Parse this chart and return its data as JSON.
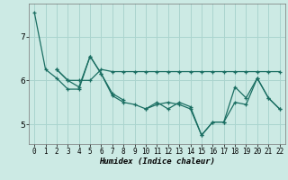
{
  "title": "",
  "xlabel": "Humidex (Indice chaleur)",
  "background_color": "#cceae4",
  "grid_color": "#aad4ce",
  "line_color": "#1a6e62",
  "xlim": [
    -0.5,
    22.5
  ],
  "ylim": [
    4.55,
    7.75
  ],
  "yticks": [
    5,
    6,
    7
  ],
  "xticks": [
    0,
    1,
    2,
    3,
    4,
    5,
    6,
    7,
    8,
    9,
    10,
    11,
    12,
    13,
    14,
    15,
    16,
    17,
    18,
    19,
    20,
    21,
    22
  ],
  "series": [
    [
      7.55,
      6.25,
      6.05,
      5.8,
      5.8,
      6.55,
      6.15,
      5.65,
      5.5,
      5.45,
      5.35,
      5.45,
      5.5,
      5.45,
      5.35,
      4.75,
      5.05,
      5.05,
      5.85,
      5.6,
      6.05,
      5.6,
      5.35
    ],
    [
      null,
      null,
      6.25,
      6.0,
      6.0,
      6.0,
      6.25,
      6.2,
      6.2,
      6.2,
      6.2,
      6.2,
      6.2,
      6.2,
      6.2,
      6.2,
      6.2,
      6.2,
      6.2,
      6.2,
      6.2,
      6.2,
      6.2
    ],
    [
      null,
      null,
      null,
      null,
      null,
      null,
      null,
      null,
      null,
      null,
      5.35,
      5.5,
      5.35,
      5.5,
      5.4,
      4.75,
      5.05,
      5.05,
      5.5,
      5.45,
      6.05,
      5.6,
      5.35
    ],
    [
      null,
      null,
      6.25,
      6.0,
      5.85,
      6.55,
      6.15,
      5.7,
      5.55,
      null,
      null,
      null,
      null,
      null,
      null,
      null,
      null,
      null,
      null,
      null,
      null,
      null,
      null
    ]
  ]
}
